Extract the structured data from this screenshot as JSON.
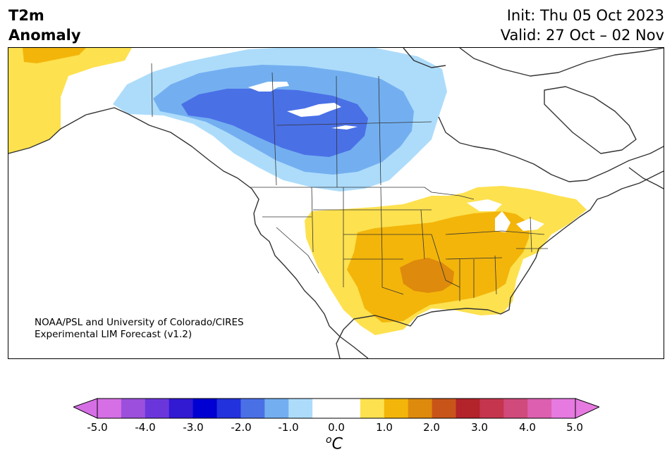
{
  "header": {
    "title_line1": "T2m",
    "title_line2": "Anomaly",
    "init_text": "Init: Thu 05 Oct 2023",
    "valid_text": "Valid: 27 Oct – 02 Nov"
  },
  "credit": {
    "line1": "NOAA/PSL and University of Colorado/CIRES",
    "line2": "Experimental LIM Forecast (v1.2)"
  },
  "colorbar": {
    "colors": [
      "#d66fe6",
      "#9b4fdc",
      "#6a36dc",
      "#3219d2",
      "#0000d2",
      "#2232dc",
      "#4a70e6",
      "#73aff0",
      "#addcfb",
      "#ffffff",
      "#ffffff",
      "#fde14f",
      "#f3b50a",
      "#de8a0c",
      "#c9541a",
      "#b3232a",
      "#c6354e",
      "#d14a7c",
      "#dc5fb0",
      "#e67ae0"
    ],
    "labels": [
      "-5.0",
      "-4.0",
      "-3.0",
      "-2.0",
      "-1.0",
      "0.0",
      "1.0",
      "2.0",
      "3.0",
      "4.0",
      "5.0"
    ],
    "unit": "C",
    "unit_prefix": "o"
  }
}
